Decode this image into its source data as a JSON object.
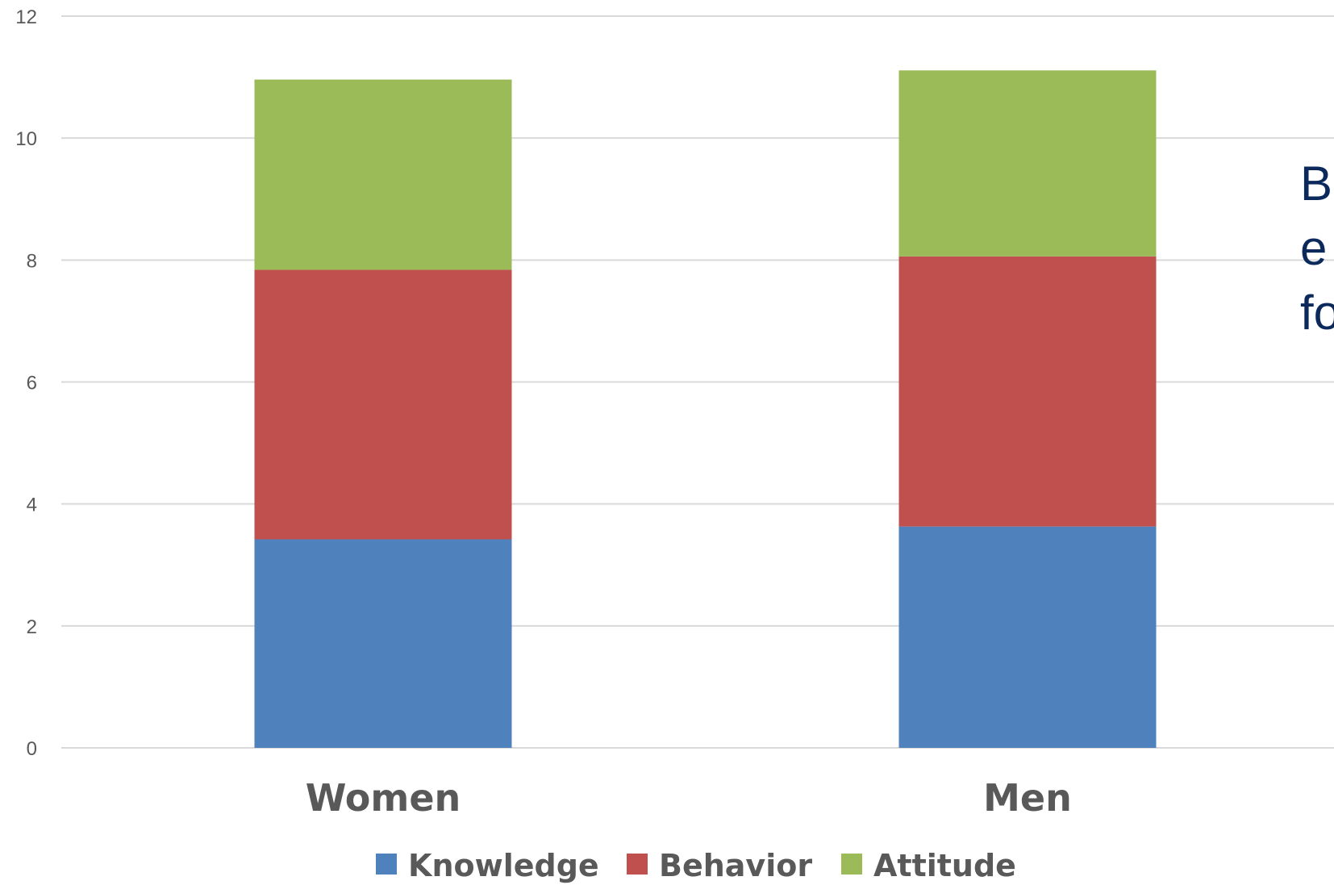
{
  "chart_data": {
    "type": "bar",
    "stacked": true,
    "categories": [
      "Women",
      "Men"
    ],
    "series": [
      {
        "name": "Knowledge",
        "color": "#4f81bd",
        "values": [
          3.42,
          3.63
        ]
      },
      {
        "name": "Behavior",
        "color": "#c0504d",
        "values": [
          4.42,
          4.43
        ]
      },
      {
        "name": "Attitude",
        "color": "#9bbb59",
        "values": [
          3.12,
          3.05
        ]
      }
    ],
    "ylim": [
      0,
      12
    ],
    "yticks": [
      0,
      2,
      4,
      6,
      8,
      10,
      12
    ],
    "grid": true,
    "legend": "bottom"
  },
  "side_text": [
    "B",
    "e",
    "fo"
  ]
}
